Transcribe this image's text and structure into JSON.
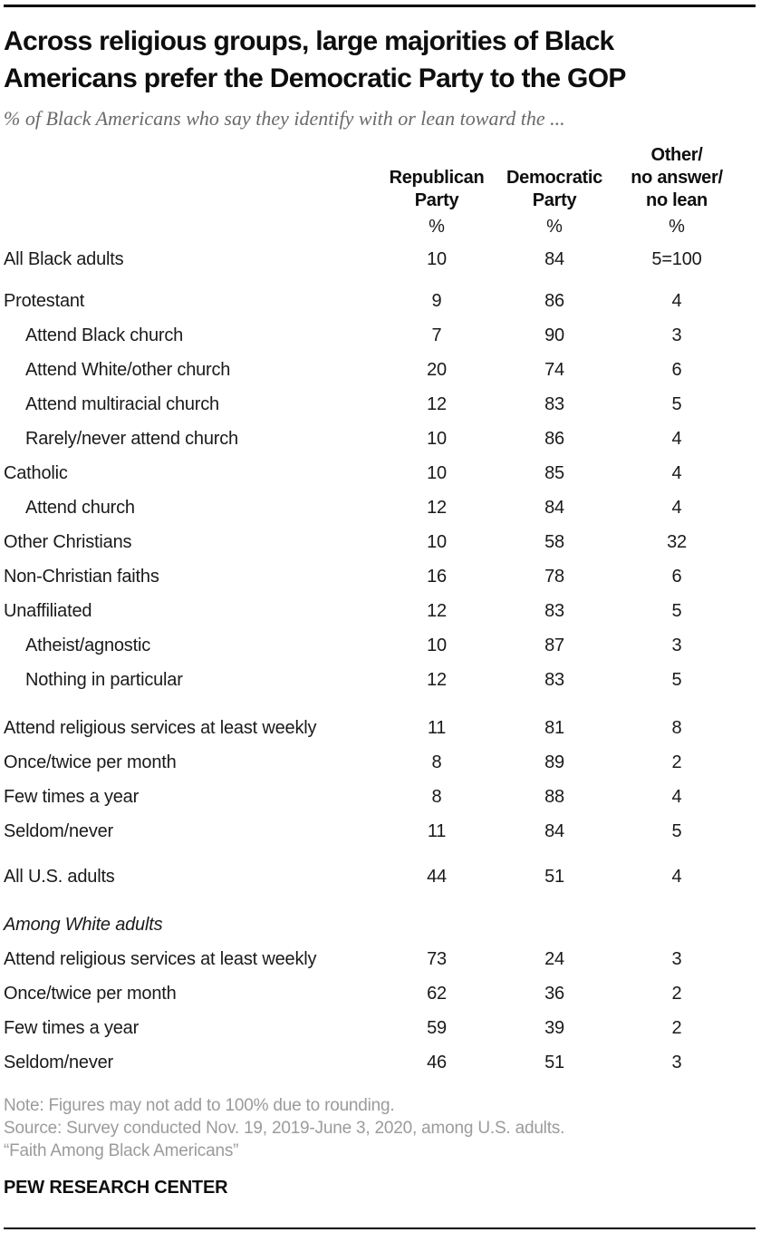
{
  "header": {
    "title_line1": "Across religious groups, large majorities of Black",
    "title_line2": "Americans prefer the Democratic Party to the GOP",
    "subtitle": "% of Black Americans who say they identify with or lean toward the ..."
  },
  "colors": {
    "title_text": "#0e0e0e",
    "body_text": "#1a1a1a",
    "subtitle_gray": "#6a6a6a",
    "note_gray": "#9b9b9b",
    "rule_black": "#000000",
    "background": "#ffffff"
  },
  "chart_data": {
    "type": "table",
    "title": "Across religious groups, large majorities of Black Americans prefer the Democratic Party to the GOP",
    "subtitle": "% of Black Americans who say they identify with or lean toward the ...",
    "columns": [
      {
        "label": "Republican\nParty",
        "unit": "%"
      },
      {
        "label": "Democratic\nParty",
        "unit": "%"
      },
      {
        "label": "Other/\nno answer/\nno lean",
        "unit": "%"
      }
    ],
    "rows": [
      {
        "label": "All Black adults",
        "cells": [
          "10",
          "84",
          "5=100"
        ],
        "values": [
          10,
          84,
          5
        ]
      },
      {
        "label": "Protestant",
        "cells": [
          "9",
          "86",
          "4"
        ],
        "values": [
          9,
          86,
          4
        ],
        "gap": "sm"
      },
      {
        "label": "Attend Black church",
        "cells": [
          "7",
          "90",
          "3"
        ],
        "values": [
          7,
          90,
          3
        ],
        "indent": true
      },
      {
        "label": "Attend White/other church",
        "cells": [
          "20",
          "74",
          "6"
        ],
        "values": [
          20,
          74,
          6
        ],
        "indent": true
      },
      {
        "label": "Attend multiracial church",
        "cells": [
          "12",
          "83",
          "5"
        ],
        "values": [
          12,
          83,
          5
        ],
        "indent": true
      },
      {
        "label": "Rarely/never attend church",
        "cells": [
          "10",
          "86",
          "4"
        ],
        "values": [
          10,
          86,
          4
        ],
        "indent": true
      },
      {
        "label": "Catholic",
        "cells": [
          "10",
          "85",
          "4"
        ],
        "values": [
          10,
          85,
          4
        ]
      },
      {
        "label": "Attend church",
        "cells": [
          "12",
          "84",
          "4"
        ],
        "values": [
          12,
          84,
          4
        ],
        "indent": true
      },
      {
        "label": "Other Christians",
        "cells": [
          "10",
          "58",
          "32"
        ],
        "values": [
          10,
          58,
          32
        ]
      },
      {
        "label": "Non-Christian faiths",
        "cells": [
          "16",
          "78",
          "6"
        ],
        "values": [
          16,
          78,
          6
        ]
      },
      {
        "label": "Unaffiliated",
        "cells": [
          "12",
          "83",
          "5"
        ],
        "values": [
          12,
          83,
          5
        ]
      },
      {
        "label": "Atheist/agnostic",
        "cells": [
          "10",
          "87",
          "3"
        ],
        "values": [
          10,
          87,
          3
        ],
        "indent": true
      },
      {
        "label": "Nothing in particular",
        "cells": [
          "12",
          "83",
          "5"
        ],
        "values": [
          12,
          83,
          5
        ],
        "indent": true
      },
      {
        "label": "Attend religious services at least weekly",
        "cells": [
          "11",
          "81",
          "8"
        ],
        "values": [
          11,
          81,
          8
        ],
        "gap": "lg"
      },
      {
        "label": "Once/twice per month",
        "cells": [
          "8",
          "89",
          "2"
        ],
        "values": [
          8,
          89,
          2
        ]
      },
      {
        "label": "Few times a year",
        "cells": [
          "8",
          "88",
          "4"
        ],
        "values": [
          8,
          88,
          4
        ]
      },
      {
        "label": "Seldom/never",
        "cells": [
          "11",
          "84",
          "5"
        ],
        "values": [
          11,
          84,
          5
        ]
      },
      {
        "label": "All U.S. adults",
        "cells": [
          "44",
          "51",
          "4"
        ],
        "values": [
          44,
          51,
          4
        ],
        "gap": "md"
      },
      {
        "label": "Among White adults",
        "section_header": true,
        "italic": true,
        "gap": "lg"
      },
      {
        "label": "Attend religious services at least weekly",
        "cells": [
          "73",
          "24",
          "3"
        ],
        "values": [
          73,
          24,
          3
        ]
      },
      {
        "label": "Once/twice per month",
        "cells": [
          "62",
          "36",
          "2"
        ],
        "values": [
          62,
          36,
          2
        ]
      },
      {
        "label": "Few times a year",
        "cells": [
          "59",
          "39",
          "2"
        ],
        "values": [
          59,
          39,
          2
        ]
      },
      {
        "label": "Seldom/never",
        "cells": [
          "46",
          "51",
          "3"
        ],
        "values": [
          46,
          51,
          3
        ]
      }
    ]
  },
  "footer": {
    "note": "Note: Figures may not add to 100% due to rounding.",
    "source": "Source: Survey conducted Nov. 19, 2019-June 3, 2020, among U.S. adults.",
    "quote": "“Faith Among Black Americans”",
    "brand": "PEW RESEARCH CENTER"
  }
}
